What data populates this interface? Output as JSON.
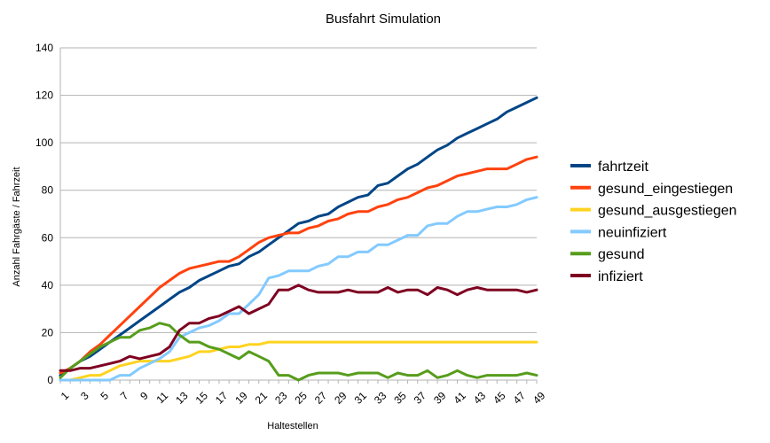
{
  "chart_data": {
    "type": "line",
    "title": "Busfahrt Simulation",
    "xlabel": "Haltestellen",
    "ylabel": "Anzahl Fahrgäste / Fahrzeit",
    "ylim": [
      0,
      140
    ],
    "yticks": [
      0,
      20,
      40,
      60,
      80,
      100,
      120,
      140
    ],
    "xtick_labels": [
      "1",
      "3",
      "5",
      "7",
      "9",
      "11",
      "13",
      "15",
      "17",
      "19",
      "21",
      "23",
      "25",
      "27",
      "29",
      "31",
      "33",
      "35",
      "37",
      "39",
      "41",
      "43",
      "45",
      "47",
      "49"
    ],
    "grid": "horizontal",
    "legend_position": "right",
    "x": [
      1,
      2,
      3,
      4,
      5,
      6,
      7,
      8,
      9,
      10,
      11,
      12,
      13,
      14,
      15,
      16,
      17,
      18,
      19,
      20,
      21,
      22,
      23,
      24,
      25,
      26,
      27,
      28,
      29,
      30,
      31,
      32,
      33,
      34,
      35,
      36,
      37,
      38,
      39,
      40,
      41,
      42,
      43,
      44,
      45,
      46,
      47,
      48,
      49
    ],
    "series": [
      {
        "name": "fahrtzeit",
        "color": "#004586",
        "values": [
          2,
          5,
          8,
          10,
          13,
          16,
          19,
          22,
          25,
          28,
          31,
          34,
          37,
          39,
          42,
          44,
          46,
          48,
          49,
          52,
          54,
          57,
          60,
          63,
          66,
          67,
          69,
          70,
          73,
          75,
          77,
          78,
          82,
          83,
          86,
          89,
          91,
          94,
          97,
          99,
          102,
          104,
          106,
          108,
          110,
          113,
          115,
          117,
          119
        ]
      },
      {
        "name": "gesund_eingestiegen",
        "color": "#ff420e",
        "values": [
          3,
          5,
          8,
          12,
          15,
          19,
          23,
          27,
          31,
          35,
          39,
          42,
          45,
          47,
          48,
          49,
          50,
          50,
          52,
          55,
          58,
          60,
          61,
          62,
          62,
          64,
          65,
          67,
          68,
          70,
          71,
          71,
          73,
          74,
          76,
          77,
          79,
          81,
          82,
          84,
          86,
          87,
          88,
          89,
          89,
          89,
          91,
          93,
          94
        ]
      },
      {
        "name": "gesund_ausgestiegen",
        "color": "#ffd320",
        "values": [
          0,
          0,
          1,
          2,
          2,
          4,
          6,
          7,
          8,
          8,
          8,
          8,
          9,
          10,
          12,
          12,
          13,
          14,
          14,
          15,
          15,
          16,
          16,
          16,
          16,
          16,
          16,
          16,
          16,
          16,
          16,
          16,
          16,
          16,
          16,
          16,
          16,
          16,
          16,
          16,
          16,
          16,
          16,
          16,
          16,
          16,
          16,
          16,
          16
        ]
      },
      {
        "name": "neuinfiziert",
        "color": "#83caff",
        "values": [
          0,
          0,
          0,
          0,
          0,
          0,
          2,
          2,
          5,
          7,
          9,
          12,
          18,
          20,
          22,
          23,
          25,
          28,
          28,
          32,
          36,
          43,
          44,
          46,
          46,
          46,
          48,
          49,
          52,
          52,
          54,
          54,
          57,
          57,
          59,
          61,
          61,
          65,
          66,
          66,
          69,
          71,
          71,
          72,
          73,
          73,
          74,
          76,
          77
        ]
      },
      {
        "name": "gesund",
        "color": "#579d1c",
        "values": [
          1,
          5,
          8,
          11,
          14,
          16,
          18,
          18,
          21,
          22,
          24,
          23,
          19,
          16,
          16,
          14,
          13,
          11,
          9,
          12,
          10,
          8,
          2,
          2,
          0,
          2,
          3,
          3,
          3,
          2,
          3,
          3,
          3,
          1,
          3,
          2,
          2,
          4,
          1,
          2,
          4,
          2,
          1,
          2,
          2,
          2,
          2,
          3,
          2
        ]
      },
      {
        "name": "infiziert",
        "color": "#7e0021",
        "values": [
          4,
          4,
          5,
          5,
          6,
          7,
          8,
          10,
          9,
          10,
          11,
          14,
          21,
          24,
          24,
          26,
          27,
          29,
          31,
          28,
          30,
          32,
          38,
          38,
          40,
          38,
          37,
          37,
          37,
          38,
          37,
          37,
          37,
          39,
          37,
          38,
          38,
          36,
          39,
          38,
          36,
          38,
          39,
          38,
          38,
          38,
          38,
          37,
          38
        ]
      }
    ]
  }
}
